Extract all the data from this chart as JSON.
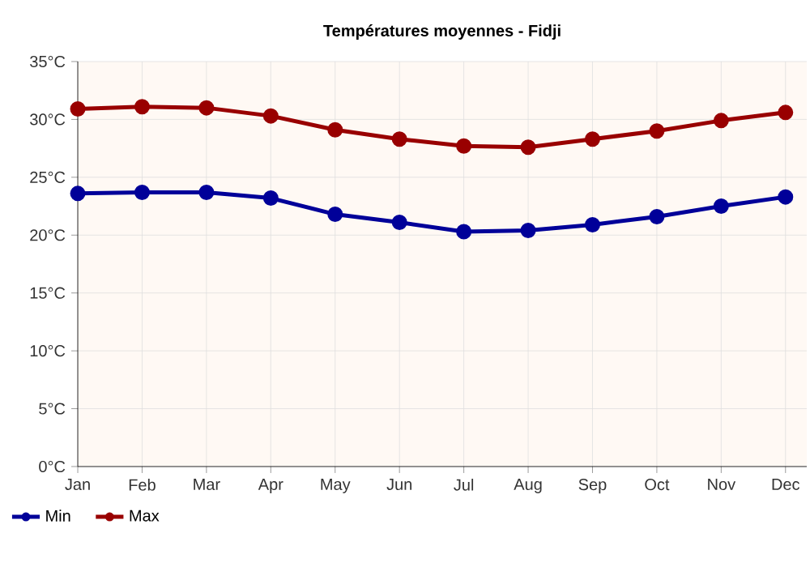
{
  "chart_data": {
    "type": "line",
    "title": "Températures moyennes - Fidji",
    "categories": [
      "Jan",
      "Feb",
      "Mar",
      "Apr",
      "May",
      "Jun",
      "Jul",
      "Aug",
      "Sep",
      "Oct",
      "Nov",
      "Dec"
    ],
    "series": [
      {
        "name": "Min",
        "color": "#000099",
        "values": [
          23.6,
          23.7,
          23.7,
          23.2,
          21.8,
          21.1,
          20.3,
          20.4,
          20.9,
          21.6,
          22.5,
          23.3
        ]
      },
      {
        "name": "Max",
        "color": "#990000",
        "values": [
          30.9,
          31.1,
          31.0,
          30.3,
          29.1,
          28.3,
          27.7,
          27.6,
          28.3,
          29.0,
          29.9,
          30.6
        ]
      }
    ],
    "ylim": [
      0,
      35
    ],
    "yticks": [
      {
        "value": 0,
        "label": "0°C"
      },
      {
        "value": 5,
        "label": "5°C"
      },
      {
        "value": 10,
        "label": "10°C"
      },
      {
        "value": 15,
        "label": "15°C"
      },
      {
        "value": 20,
        "label": "20°C"
      },
      {
        "value": 25,
        "label": "25°C"
      },
      {
        "value": 30,
        "label": "30°C"
      },
      {
        "value": 35,
        "label": "35°C"
      }
    ],
    "grid": true,
    "legend": "bottom left",
    "marker": "circle",
    "line_style": "solid"
  }
}
